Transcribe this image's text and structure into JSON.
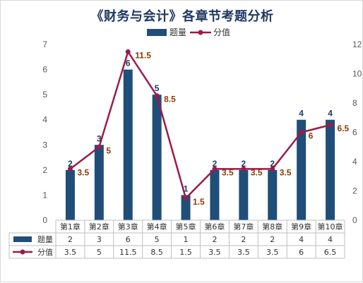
{
  "chart_data": {
    "type": "bar",
    "title": "《财务与会计》各章节考题分析",
    "categories": [
      "第1章",
      "第2章",
      "第3章",
      "第4章",
      "第5章",
      "第6章",
      "第7章",
      "第8章",
      "第9章",
      "第10章"
    ],
    "series": [
      {
        "name": "题量",
        "type": "bar",
        "axis": "left",
        "color": "#1f4e79",
        "values": [
          2,
          3,
          6,
          5,
          1,
          2,
          2,
          2,
          4,
          4
        ],
        "labels": [
          "2",
          "3",
          "6",
          "5",
          "1",
          "2",
          "2",
          "2",
          "4",
          "4"
        ]
      },
      {
        "name": "分值",
        "type": "line",
        "axis": "right",
        "color": "#9b1b4a",
        "values": [
          3.5,
          5,
          11.5,
          8.5,
          1.5,
          3.5,
          3.5,
          3.5,
          6,
          6.5
        ],
        "labels": [
          "3.5",
          "5",
          "11.5",
          "8.5",
          "1.5",
          "3.5",
          "3.5",
          "3.5",
          "6",
          "6.5"
        ]
      }
    ],
    "y_left": {
      "min": 0,
      "max": 7,
      "ticks": [
        "0",
        "1",
        "2",
        "3",
        "4",
        "5",
        "6",
        "7"
      ]
    },
    "y_right": {
      "min": 0,
      "max": 12,
      "ticks": [
        "0",
        "2",
        "4",
        "6",
        "8",
        "10",
        "12"
      ]
    },
    "legend_position": "top",
    "grid": false,
    "data_table": true
  }
}
